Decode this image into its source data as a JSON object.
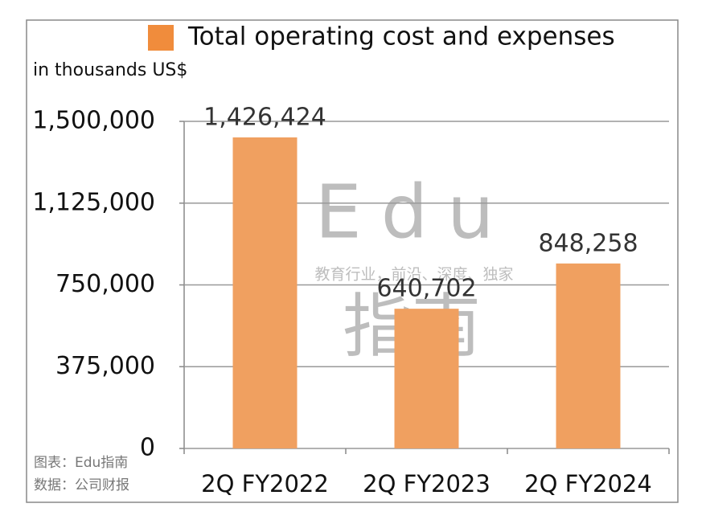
{
  "chart_data": {
    "type": "bar",
    "legend_label": "Total operating cost and expenses",
    "unit_label": "in thousands US$",
    "categories": [
      "2Q FY2022",
      "2Q FY2023",
      "2Q FY2024"
    ],
    "values": [
      1426424,
      640702,
      848258
    ],
    "value_labels": [
      "1,426,424",
      "640,702",
      "848,258"
    ],
    "color": "#f0a060",
    "legend_color": "#f08c3c",
    "ylim": [
      0,
      1500000
    ],
    "yticks": [
      0,
      {
        "value": 375000,
        "label": "375,000"
      },
      {
        "value": 750000,
        "label": "750,000"
      },
      {
        "value": 1125000,
        "label": "1,125,000"
      },
      {
        "value": 1500000,
        "label": "1,500,000"
      }
    ],
    "grid": true,
    "watermark": {
      "brand": "Edu",
      "brand_cn": "指南",
      "slogan": "教育行业，前沿、深度、独家"
    },
    "notes": [
      "图表：Edu指南",
      "数据：公司财报"
    ]
  }
}
